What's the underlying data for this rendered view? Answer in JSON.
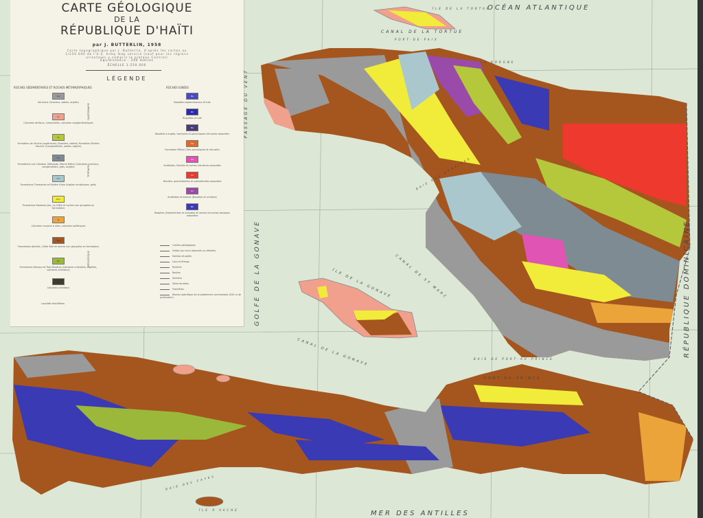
{
  "title": {
    "line1": "CARTE GÉOLOGIQUE",
    "line2": "DE LA",
    "line3": "RÉPUBLIQUE D'HAÏTI",
    "author": "par J. BUTTERLIN, 1958",
    "subtitle": "Carte topographique par J. Butterlin, d'après les cartes au 1/250.000 de l'U.S. Army map service (sauf pour les régions orientales y compris le plateau Central)",
    "equidistance": "Équidistance : 200 mètres",
    "scale": "ÉCHELLE 1:250.000"
  },
  "legend": {
    "heading": "LÉGENDE",
    "sedimentary_heading": "ROCHES SÉDIMENTAIRES ET ROCHES MÉTAMORPHIQUES",
    "igneous_heading": "ROCHES IGNÉES",
    "eras": [
      "QUATERNAIRE",
      "TERTIAIRE",
      "MÉSOZOÏQUE"
    ],
    "sedimentary": [
      {
        "code": "Qal",
        "color": "#9a9a9a",
        "label": "Alluvions (Graviers, sables, argiles)"
      },
      {
        "code": "Qr",
        "color": "#f0a08c",
        "label": "Calcaires récifaux, lumachelles, calcaires conglomératiques"
      },
      {
        "code": "Tp",
        "color": "#b5c83c",
        "label": "Formation de Hinche (supérieure) (Graviers, sables) Formation Rivière Gauche (Conglomérats, sables, argiles)"
      },
      {
        "code": "Tm",
        "color": "#7f8b92",
        "label": "Formations Las Cahobas, Maïssade, Morne Délice (Calcaires marneux, conglomérats, grès, argiles)"
      },
      {
        "code": "Tm",
        "color": "#a9c7cc",
        "label": "Formations Thomonde et Rivière Grise (Argiles schisteuses, grès)"
      },
      {
        "code": "Tom",
        "color": "#f1ec3a",
        "label": "Formations Madame Joie, La Crête et roches non groupées en formations"
      },
      {
        "code": "To",
        "color": "#eba43a",
        "label": "Calcaires crayeux à silex, calcaires oolithiques"
      },
      {
        "code": "Teg",
        "color": "#a4561e",
        "label": "Formations Abuillot, Crête Sale et roches non groupées en formations"
      },
      {
        "code": "Mc",
        "color": "#9bb83a",
        "label": "Formations Macaya et Trois Rivières (Calcaires cristallins, argilites, calcaires schisteux)"
      },
      {
        "code": "Cs",
        "color": "#3e3a2c",
        "label": "Calcaires schisteux"
      }
    ],
    "igneous": [
      {
        "code": "Bs",
        "color": "#4a4ac0",
        "label": "Basaltes septentrionaux et tufs"
      },
      {
        "code": "Rh",
        "color": "#2a2ab0",
        "label": "Rhyolites et tufs"
      },
      {
        "code": "Ba",
        "color": "#4a3a7a",
        "label": "Basaltes à augite, trachytes et plutoniques intrusives associées"
      },
      {
        "code": "Tfe",
        "color": "#e06a2a",
        "label": "Formation Pétion (Tufs volcaniques et intrusifs)"
      },
      {
        "code": "Ad",
        "color": "#e055b4",
        "label": "Andésites, Dacites et roches intrusives associées"
      },
      {
        "code": "Di",
        "color": "#ee3a2e",
        "label": "Diorites, quartzdiorites et syénodiorites associées"
      },
      {
        "code": "An",
        "color": "#9a4aa8",
        "label": "Andésites et dacites (Basaltes et schistes)"
      },
      {
        "code": "Bh",
        "color": "#3a3ab4",
        "label": "Basaltes (Hasslerinites et schistes) et roches intrusives basiques associées"
      }
    ],
    "symbols": [
      "Limites géologiques",
      "Failles (ou murs observés ou déduits)",
      "Dolines et poljés",
      "Lacs et étangs",
      "Rivières",
      "Routes",
      "Sentiers",
      "Villes fermées",
      "Frontières",
      "Niveau spécifique de la plateforme continentale (200 m de profondeur)"
    ],
    "fossil_note": "Localités fossilifères"
  },
  "map_labels": {
    "ocean": "OCÉAN ATLANTIQUE",
    "tortue": "ÎLE DE LA TORTUE",
    "canal_tortue": "CANAL DE LA TORTUE",
    "port_de_paix": "PORT-DE-PAIX",
    "le_borgne": "LE BORGNE",
    "passage": "PASSAGE DU VENT",
    "golfe": "GOLFE DE LA GONAVE",
    "gonave": "ÎLE DE LA GONAVE",
    "canal_gonave": "CANAL DE LA GONAVE",
    "canal_st_marc": "CANAL DE ST MARC",
    "baie_gonaives": "BAIE DES GONAÏVES",
    "baie_pap": "BAIE DE PORT-AU-PRINCE",
    "pap": "PORT-AU-PRINCE",
    "mer": "MER DES ANTILLES",
    "republique": "RÉPUBLIQUE DOMINICAINE",
    "baie_cayes": "BAIE DES CAYES",
    "ile_vache": "ÎLE À VACHE"
  },
  "colors": {
    "sea": "#dde7d6",
    "paper": "#f5f3e7"
  }
}
